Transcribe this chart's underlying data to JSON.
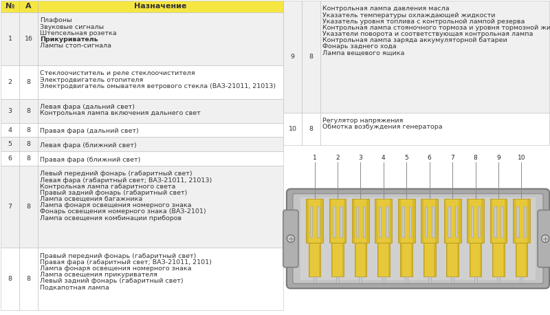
{
  "header_bg": "#f5e642",
  "rows_left": [
    {
      "num": "1",
      "amp": "16",
      "desc": "Плафоны\nЗвуковые сигналы\nШтепсельная розетка\nПрикуриватель\nЛампы стоп-сигнала",
      "bold_line": "Прикуриватель"
    },
    {
      "num": "2",
      "amp": "8",
      "desc": "Стеклоочиститель и реле стеклоочистителя\nЭлектродвигатель отопителя\nЭлектродвигатель омывателя ветрового стекла (ВАЗ-21011, 21013)",
      "bold_line": ""
    },
    {
      "num": "3",
      "amp": "8",
      "desc": "Левая фара (дальний свет)\nКонтрольная лампа включения дальнего свет",
      "bold_line": ""
    },
    {
      "num": "4",
      "amp": "8",
      "desc": "Правая фара (дальний свет)",
      "bold_line": ""
    },
    {
      "num": "5",
      "amp": "8",
      "desc": "Левая фара (ближний свет)",
      "bold_line": ""
    },
    {
      "num": "6",
      "amp": "8",
      "desc": "Правая фара (ближний свет)",
      "bold_line": ""
    },
    {
      "num": "7",
      "amp": "8",
      "desc": "Левый передний фонарь (габаритный свет)\nЛевая фара (габаритный свет; ВАЗ-21011, 21013)\nКонтрольная лампа габаритного света\nПравый задний фонарь (габаритный свет)\nЛампа освещения багажника\nЛампа фонаря освещения номерного знака\nФонарь освещения номерного знака (ВАЗ-2101)\nЛампа освещения комбинации приборов",
      "bold_line": ""
    },
    {
      "num": "8",
      "amp": "8",
      "desc": "Правый передний фонарь (габаритный свет)\nПравая фара (габаритный свет; ВАЗ-21011, 2101)\nЛампа фонаря освещения номерного знака\nЛампа освещения прикуривателя\nЛевый задний фонарь (габаритный свет)\nПодкапотная лампа",
      "bold_line": ""
    }
  ],
  "rows_right": [
    {
      "num": "9",
      "amp": "8",
      "desc": "Контрольная лампа давления масла\nУказатель температуры охлаждающей жидкости\nУказатель уровня топлива с контрольной лампой резерва\nКонтрольная лампа стояночного тормоза и уровня тормозной жидкости\nУказатели поворота и соответствующая контрольная лампа\nКонтрольная лампа заряда аккумуляторной батареи\nФонарь заднего хода\nЛампа вещевого ящика",
      "bold_line": ""
    },
    {
      "num": "10",
      "amp": "8",
      "desc": "Регулятор напряжения\nОбмотка возбуждения генератора",
      "bold_line": ""
    }
  ],
  "table_border_color": "#bbbbbb",
  "text_color": "#333333",
  "row_bg_light": "#f0f0f0",
  "row_bg_white": "#ffffff",
  "font_size": 6.8,
  "header_font_size": 8.0
}
